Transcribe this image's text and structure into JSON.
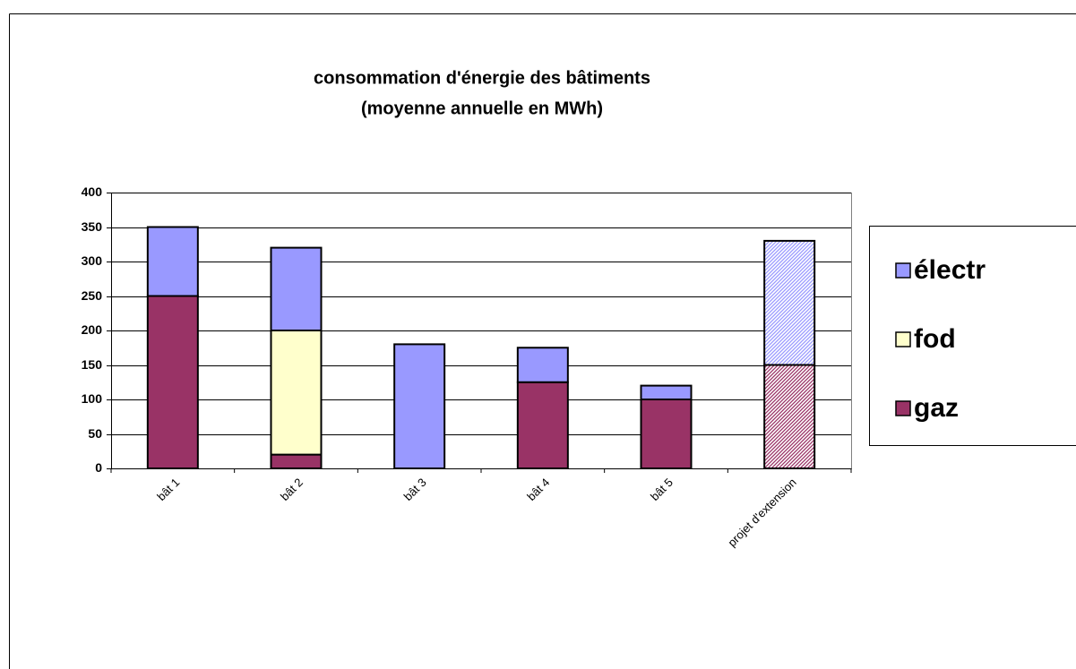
{
  "chart_data": {
    "type": "stacked_bar",
    "title": "consommation d'énergie des bâtiments",
    "subtitle": "(moyenne annuelle en MWh)",
    "categories": [
      "bât 1",
      "bât 2",
      "bât 3",
      "bât 4",
      "bât 5",
      "projet d'extension"
    ],
    "hatched": [
      false,
      false,
      false,
      false,
      false,
      true
    ],
    "series": [
      {
        "name": "gaz",
        "color": "#993366",
        "values": [
          250,
          20,
          0,
          125,
          100,
          150
        ]
      },
      {
        "name": "fod",
        "color": "#ffffcc",
        "values": [
          0,
          180,
          0,
          0,
          0,
          0
        ]
      },
      {
        "name": "électr",
        "color": "#9999ff",
        "values": [
          100,
          120,
          180,
          50,
          20,
          180
        ]
      }
    ],
    "ylim": [
      0,
      400
    ],
    "yticks": [
      0,
      50,
      100,
      150,
      200,
      250,
      300,
      350,
      400
    ],
    "grid": true,
    "legend": "right"
  }
}
